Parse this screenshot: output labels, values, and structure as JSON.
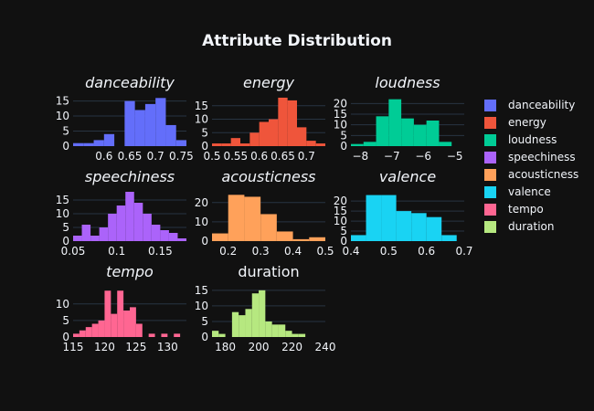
{
  "title": "Attribute Distribution",
  "colors": {
    "background": "#111111",
    "grid": "#283442",
    "text": "#f2f5fa"
  },
  "legend": {
    "placement": "right",
    "items": [
      "danceability",
      "energy",
      "loudness",
      "speechiness",
      "acousticness",
      "valence",
      "tempo",
      "duration"
    ]
  },
  "chart_data": [
    {
      "type": "bar",
      "name": "danceability",
      "title": "danceability",
      "italic": true,
      "color": "#636efa",
      "xlim": [
        0.54,
        0.76
      ],
      "ylim": [
        0,
        17
      ],
      "xticks": [
        0.6,
        0.65,
        0.7,
        0.75
      ],
      "xtick_labels": [
        "0.6",
        "0.65",
        "0.7",
        "0.75"
      ],
      "yticks": [
        0,
        5,
        10,
        15
      ],
      "ytick_labels": [
        "0",
        "5",
        "10",
        "15"
      ],
      "bin_edges": [
        0.54,
        0.56,
        0.58,
        0.6,
        0.62,
        0.64,
        0.66,
        0.68,
        0.7,
        0.72,
        0.74,
        0.76
      ],
      "counts": [
        1,
        1,
        2,
        4,
        0,
        15,
        12,
        14,
        16,
        7,
        2
      ]
    },
    {
      "type": "bar",
      "name": "energy",
      "title": "energy",
      "italic": true,
      "color": "#ef553b",
      "xlim": [
        0.5,
        0.74
      ],
      "ylim": [
        0,
        19
      ],
      "xticks": [
        0.5,
        0.55,
        0.6,
        0.65,
        0.7
      ],
      "xtick_labels": [
        "0.5",
        "0.55",
        "0.6",
        "0.65",
        "0.7"
      ],
      "yticks": [
        0,
        5,
        10,
        15
      ],
      "ytick_labels": [
        "0",
        "5",
        "10",
        "15"
      ],
      "bin_edges": [
        0.5,
        0.52,
        0.54,
        0.56,
        0.58,
        0.6,
        0.62,
        0.64,
        0.66,
        0.68,
        0.7,
        0.72,
        0.74
      ],
      "counts": [
        1,
        1,
        3,
        1,
        5,
        9,
        10,
        18,
        17,
        7,
        2,
        1
      ]
    },
    {
      "type": "bar",
      "name": "loudness",
      "title": "loudness",
      "italic": true,
      "color": "#00cc96",
      "xlim": [
        -8.3,
        -4.7
      ],
      "ylim": [
        0,
        24
      ],
      "xticks": [
        -8,
        -7,
        -6,
        -5
      ],
      "xtick_labels": [
        "−8",
        "−7",
        "−6",
        "−5"
      ],
      "yticks": [
        0,
        5,
        10,
        15,
        20
      ],
      "ytick_labels": [
        "0",
        "5",
        "10",
        "15",
        "20"
      ],
      "bin_edges": [
        -8.3,
        -7.9,
        -7.5,
        -7.1,
        -6.7,
        -6.3,
        -5.9,
        -5.5,
        -5.1,
        -4.7
      ],
      "counts": [
        1,
        2,
        14,
        22,
        13,
        10,
        12,
        2,
        0
      ]
    },
    {
      "type": "bar",
      "name": "speechiness",
      "title": "speechiness",
      "italic": true,
      "color": "#ab63fa",
      "xlim": [
        0.05,
        0.18
      ],
      "ylim": [
        0,
        19
      ],
      "xticks": [
        0.05,
        0.1,
        0.15
      ],
      "xtick_labels": [
        "0.05",
        "0.1",
        "0.15"
      ],
      "yticks": [
        0,
        5,
        10,
        15
      ],
      "ytick_labels": [
        "0",
        "5",
        "10",
        "15"
      ],
      "bin_edges": [
        0.05,
        0.06,
        0.07,
        0.08,
        0.09,
        0.1,
        0.11,
        0.12,
        0.13,
        0.14,
        0.15,
        0.16,
        0.17,
        0.18
      ],
      "counts": [
        2,
        6,
        2,
        5,
        10,
        13,
        18,
        14,
        10,
        6,
        4,
        3,
        1
      ]
    },
    {
      "type": "bar",
      "name": "acousticness",
      "title": "acousticness",
      "italic": true,
      "color": "#ffa15a",
      "xlim": [
        0.15,
        0.5
      ],
      "ylim": [
        0,
        27
      ],
      "xticks": [
        0.2,
        0.3,
        0.4,
        0.5
      ],
      "xtick_labels": [
        "0.2",
        "0.3",
        "0.4",
        "0.5"
      ],
      "yticks": [
        0,
        10,
        20
      ],
      "ytick_labels": [
        "0",
        "10",
        "20"
      ],
      "bin_edges": [
        0.15,
        0.2,
        0.25,
        0.3,
        0.35,
        0.4,
        0.45,
        0.5
      ],
      "counts": [
        4,
        24,
        23,
        14,
        5,
        1,
        2
      ]
    },
    {
      "type": "bar",
      "name": "valence",
      "title": "valence",
      "italic": true,
      "color": "#19d3f3",
      "xlim": [
        0.4,
        0.7
      ],
      "ylim": [
        0,
        26
      ],
      "xticks": [
        0.4,
        0.5,
        0.6,
        0.7
      ],
      "xtick_labels": [
        "0.4",
        "0.5",
        "0.6",
        "0.7"
      ],
      "yticks": [
        0,
        5,
        10,
        15,
        20
      ],
      "ytick_labels": [
        "0",
        "5",
        "10",
        "15",
        "20"
      ],
      "bin_edges": [
        0.4,
        0.44,
        0.48,
        0.52,
        0.56,
        0.6,
        0.64,
        0.68,
        0.7
      ],
      "counts": [
        3,
        23,
        23,
        15,
        14,
        12,
        3,
        0
      ]
    },
    {
      "type": "bar",
      "name": "tempo",
      "title": "tempo",
      "italic": true,
      "color": "#ff6692",
      "xlim": [
        115,
        133
      ],
      "ylim": [
        0,
        16
      ],
      "xticks": [
        115,
        120,
        125,
        130
      ],
      "xtick_labels": [
        "115",
        "120",
        "125",
        "130"
      ],
      "yticks": [
        0,
        5,
        10
      ],
      "ytick_labels": [
        "0",
        "5",
        "10"
      ],
      "bin_edges": [
        115,
        116,
        117,
        118,
        119,
        120,
        121,
        122,
        123,
        124,
        125,
        126,
        127,
        128,
        129,
        130,
        131,
        132,
        133
      ],
      "counts": [
        1,
        2,
        3,
        4,
        5,
        14,
        7,
        14,
        8,
        9,
        4,
        0,
        1,
        0,
        1,
        0,
        1,
        0
      ]
    },
    {
      "type": "bar",
      "name": "duration",
      "title": "duration",
      "italic": false,
      "color": "#b6e880",
      "xlim": [
        172,
        240
      ],
      "ylim": [
        0,
        17
      ],
      "xticks": [
        180,
        200,
        220,
        240
      ],
      "xtick_labels": [
        "180",
        "200",
        "220",
        "240"
      ],
      "yticks": [
        0,
        5,
        10,
        15
      ],
      "ytick_labels": [
        "0",
        "5",
        "10",
        "15"
      ],
      "bin_edges": [
        172,
        176,
        180,
        184,
        188,
        192,
        196,
        200,
        204,
        208,
        212,
        216,
        220,
        224,
        228,
        232,
        236,
        240
      ],
      "counts": [
        2,
        1,
        0,
        8,
        7,
        9,
        14,
        15,
        5,
        4,
        4,
        2,
        1,
        1,
        0,
        0,
        0
      ]
    }
  ]
}
